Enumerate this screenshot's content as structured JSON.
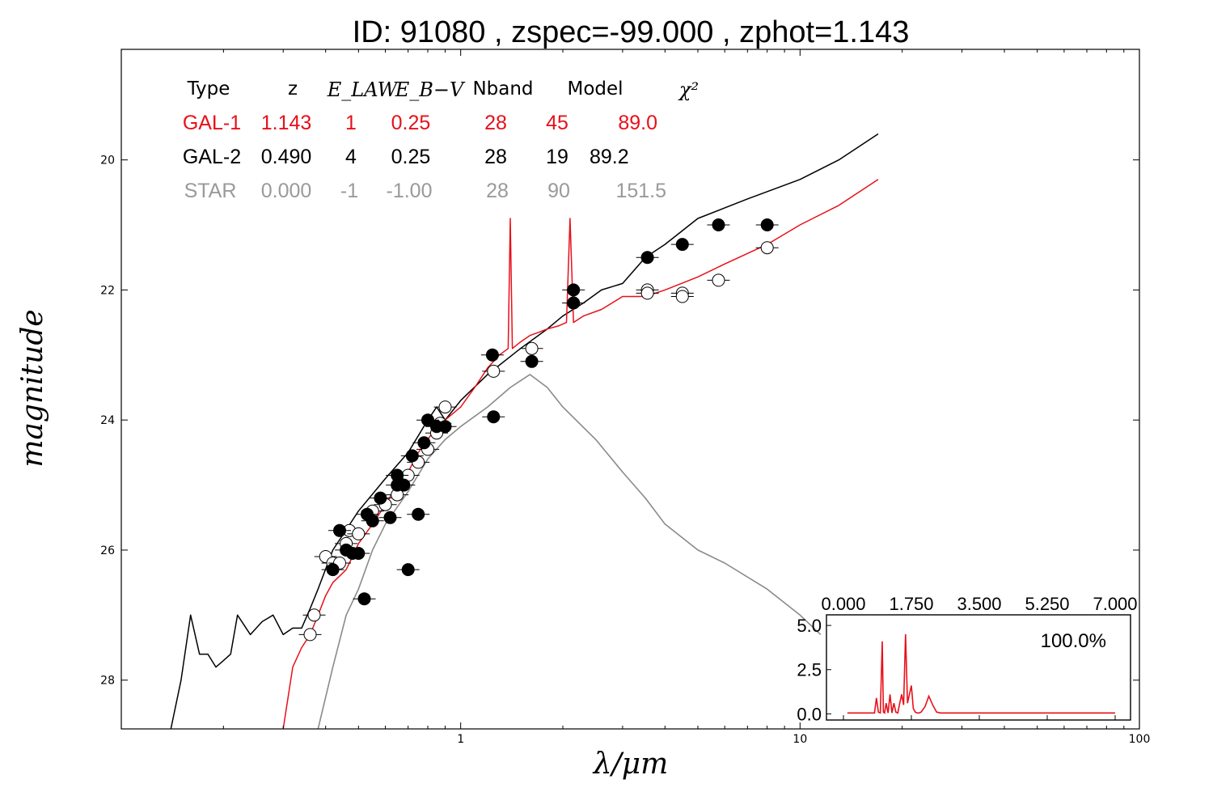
{
  "title": "ID:  91080 , zspec=-99.000 , zphot=1.143",
  "colors": {
    "gal1": "#e8101a",
    "gal2": "#000000",
    "star": "#8a8a8a",
    "axis": "#000000"
  },
  "chart_data": [
    {
      "type": "scatter",
      "xlabel": "λ/μm",
      "ylabel": "magnitude",
      "x_scale": "log",
      "xlim": [
        0.1,
        100
      ],
      "ylim": [
        28.75,
        18.3
      ],
      "y_inverted": true,
      "grid": false,
      "x_ticks": [
        {
          "v": 1,
          "label": "1"
        },
        {
          "v": 10,
          "label": "10"
        },
        {
          "v": 100,
          "label": "100"
        }
      ],
      "y_ticks": [
        {
          "v": 20,
          "label": "20"
        },
        {
          "v": 22,
          "label": "22"
        },
        {
          "v": 24,
          "label": "24"
        },
        {
          "v": 26,
          "label": "26"
        },
        {
          "v": 28,
          "label": "28"
        }
      ],
      "table": {
        "headers": [
          "Type",
          "z",
          "E_LAW",
          "E_B−V",
          "Nband",
          "Model",
          "χ²"
        ],
        "rows": [
          {
            "type": "GAL-1",
            "z": "1.143",
            "elaw": "1",
            "ebv": "0.25",
            "nband": "28",
            "model": "45",
            "chi2": "89.0"
          },
          {
            "type": "GAL-2",
            "z": "0.490",
            "elaw": "4",
            "ebv": "0.25",
            "nband": "28",
            "model": "19",
            "chi2": "89.2"
          },
          {
            "type": "STAR",
            "z": "0.000",
            "elaw": "-1",
            "ebv": "-1.00",
            "nband": "28",
            "model": "90",
            "chi2": "151.5"
          }
        ]
      },
      "series": [
        {
          "name": "GAL-1",
          "kind": "line",
          "x": [
            0.3,
            0.32,
            0.34,
            0.36,
            0.38,
            0.4,
            0.42,
            0.44,
            0.46,
            0.48,
            0.5,
            0.55,
            0.6,
            0.65,
            0.7,
            0.75,
            0.8,
            0.85,
            0.9,
            1.0,
            1.1,
            1.2,
            1.3,
            1.38,
            1.4,
            1.42,
            1.5,
            1.6,
            1.7,
            1.8,
            1.95,
            2.05,
            2.1,
            2.15,
            2.3,
            2.6,
            3.0,
            3.5,
            4.0,
            5.0,
            6.0,
            8.0,
            10.0,
            13.0,
            17.0
          ],
          "y": [
            28.8,
            27.8,
            27.5,
            27.3,
            27.0,
            26.7,
            26.5,
            26.4,
            26.3,
            26.1,
            25.9,
            25.6,
            25.3,
            25.0,
            24.8,
            24.5,
            24.3,
            24.1,
            24.0,
            23.8,
            23.5,
            23.2,
            23.0,
            22.9,
            20.9,
            22.9,
            22.8,
            22.7,
            22.65,
            22.6,
            22.55,
            22.5,
            20.9,
            22.5,
            22.4,
            22.3,
            22.1,
            22.1,
            22.0,
            21.8,
            21.6,
            21.3,
            21.0,
            20.7,
            20.3
          ]
        },
        {
          "name": "GAL-2",
          "kind": "line",
          "x": [
            0.14,
            0.15,
            0.16,
            0.17,
            0.18,
            0.19,
            0.2,
            0.21,
            0.22,
            0.24,
            0.26,
            0.28,
            0.3,
            0.32,
            0.34,
            0.36,
            0.38,
            0.42,
            0.5,
            0.6,
            0.7,
            0.8,
            0.85,
            0.9,
            1.0,
            1.2,
            1.5,
            1.8,
            2.0,
            2.3,
            2.6,
            3.0,
            3.5,
            4.0,
            5.0,
            7.0,
            10.0,
            13.0,
            17.0
          ],
          "y": [
            28.8,
            28.0,
            27.0,
            27.6,
            27.6,
            27.8,
            27.7,
            27.6,
            27.0,
            27.3,
            27.1,
            27.0,
            27.3,
            27.2,
            27.2,
            26.9,
            26.6,
            26.0,
            25.4,
            24.9,
            24.5,
            24.0,
            23.8,
            24.0,
            23.7,
            23.3,
            22.9,
            22.6,
            22.4,
            22.2,
            22.0,
            21.9,
            21.5,
            21.3,
            20.9,
            20.6,
            20.3,
            20.0,
            19.6
          ]
        },
        {
          "name": "STAR",
          "kind": "line",
          "x": [
            0.38,
            0.42,
            0.46,
            0.5,
            0.55,
            0.6,
            0.7,
            0.8,
            0.9,
            1.0,
            1.2,
            1.4,
            1.6,
            1.8,
            2.0,
            2.5,
            3.0,
            3.5,
            4.0,
            5.0,
            6.0,
            8.0,
            10.0,
            11.5
          ],
          "y": [
            28.8,
            27.8,
            27.0,
            26.6,
            26.0,
            25.6,
            25.1,
            24.6,
            24.3,
            24.1,
            23.8,
            23.5,
            23.3,
            23.5,
            23.8,
            24.3,
            24.8,
            25.2,
            25.6,
            26.0,
            26.2,
            26.6,
            27.0,
            27.3
          ]
        },
        {
          "name": "observed",
          "kind": "points-filled",
          "x": [
            0.42,
            0.44,
            0.46,
            0.48,
            0.5,
            0.52,
            0.53,
            0.55,
            0.58,
            0.62,
            0.65,
            0.65,
            0.68,
            0.7,
            0.72,
            0.75,
            0.78,
            0.8,
            0.85,
            0.9,
            1.24,
            1.25,
            1.62,
            2.15,
            2.15,
            3.55,
            4.5,
            5.75,
            8.0
          ],
          "y": [
            26.3,
            25.7,
            26.0,
            26.05,
            26.05,
            26.75,
            25.45,
            25.55,
            25.2,
            25.5,
            25.0,
            24.85,
            25.0,
            26.3,
            24.55,
            25.45,
            24.35,
            24.0,
            24.1,
            24.1,
            23.0,
            23.95,
            23.1,
            22.0,
            22.2,
            21.5,
            21.3,
            21.0,
            21.0
          ]
        },
        {
          "name": "model",
          "kind": "points-open",
          "x": [
            0.36,
            0.37,
            0.4,
            0.42,
            0.44,
            0.46,
            0.47,
            0.5,
            0.55,
            0.6,
            0.65,
            0.7,
            0.75,
            0.8,
            0.85,
            0.87,
            0.9,
            1.25,
            1.62,
            2.15,
            3.55,
            3.55,
            4.5,
            4.5,
            5.75,
            8.0
          ],
          "y": [
            27.3,
            27.0,
            26.1,
            26.2,
            26.2,
            25.9,
            25.7,
            25.75,
            25.4,
            25.3,
            25.15,
            24.85,
            24.65,
            24.45,
            24.2,
            24.05,
            23.8,
            23.25,
            22.9,
            22.2,
            22.0,
            22.05,
            22.05,
            22.1,
            21.85,
            21.35
          ]
        }
      ]
    },
    {
      "type": "line",
      "xlim": [
        0,
        7
      ],
      "ylim": [
        -0.35,
        5.6
      ],
      "x_ticks": [
        {
          "v": 0,
          "label": "0.000"
        },
        {
          "v": 1.75,
          "label": "1.750"
        },
        {
          "v": 3.5,
          "label": "3.500"
        },
        {
          "v": 5.25,
          "label": "5.250"
        },
        {
          "v": 7,
          "label": "7.000"
        }
      ],
      "y_ticks": [
        {
          "v": 0,
          "label": "0.0"
        },
        {
          "v": 2.5,
          "label": "2.5"
        },
        {
          "v": 5,
          "label": "5.0"
        }
      ],
      "annotation": "100.0%",
      "series": [
        {
          "x": [
            0.1,
            0.8,
            0.85,
            0.9,
            0.95,
            1.0,
            1.03,
            1.06,
            1.1,
            1.15,
            1.2,
            1.25,
            1.3,
            1.35,
            1.4,
            1.45,
            1.5,
            1.55,
            1.6,
            1.65,
            1.7,
            1.75,
            1.8,
            1.85,
            1.9,
            1.95,
            2.0,
            2.1,
            2.2,
            2.3,
            2.4,
            2.5,
            2.6,
            7.0
          ],
          "y": [
            0.05,
            0.05,
            0.9,
            0.1,
            0.05,
            4.1,
            0.1,
            0.05,
            0.6,
            0.05,
            1.1,
            0.05,
            0.6,
            0.1,
            0.05,
            0.6,
            1.1,
            0.5,
            4.5,
            0.6,
            1.1,
            1.6,
            0.3,
            0.1,
            0.05,
            0.05,
            0.1,
            0.4,
            1.0,
            0.5,
            0.1,
            0.05,
            0.05,
            0.05
          ]
        }
      ]
    }
  ]
}
